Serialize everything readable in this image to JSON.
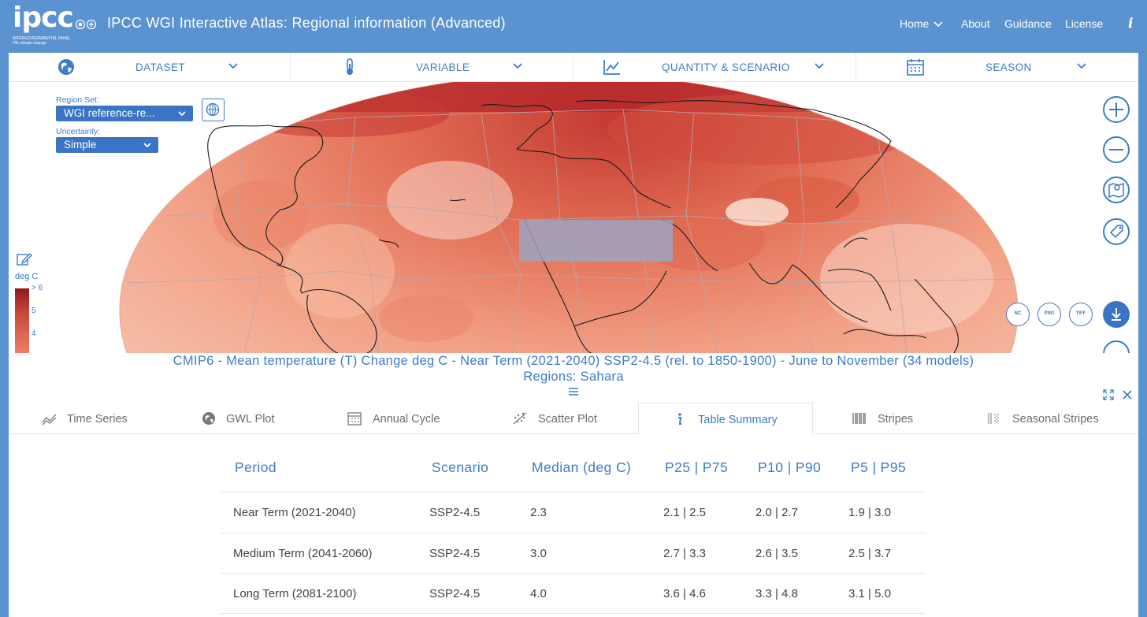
{
  "header": {
    "logo_text": "ipcc",
    "logo_subtext": "INTERGOVERNMENTAL PANEL ON climate change",
    "title": "IPCC WGI Interactive Atlas: Regional information (Advanced)",
    "nav": [
      {
        "label": "Home",
        "has_dropdown": true
      },
      {
        "label": "About"
      },
      {
        "label": "Guidance"
      },
      {
        "label": "License"
      }
    ],
    "info_icon": "info-icon"
  },
  "toolbar": {
    "dataset": {
      "label": "DATASET",
      "icon": "globe-icon"
    },
    "variable": {
      "label": "VARIABLE",
      "icon": "thermometer-icon"
    },
    "quantity": {
      "label": "QUANTITY & SCENARIO",
      "icon": "line-chart-icon"
    },
    "season": {
      "label": "SEASON",
      "icon": "calendar-icon"
    }
  },
  "map": {
    "region_set_label": "Region Set:",
    "region_set_value": "WGI reference-re...",
    "uncertainty_label": "Uncertainty:",
    "uncertainty_value": "Simple",
    "legend_unit": "deg C",
    "legend_ticks": [
      "> 6",
      "5",
      "4"
    ],
    "selected_region": "Sahara",
    "export_buttons": [
      "NC",
      "PNG",
      "TIFF"
    ],
    "colors": {
      "hot": "#b3262a",
      "warm": "#e8735a",
      "mild": "#f6c3ac",
      "selection": "#9aa6c4"
    }
  },
  "caption": {
    "line1": "CMIP6 - Mean temperature (T) Change deg C - Near Term (2021-2040) SSP2-4.5 (rel. to 1850-1900) - June to November (34 models)",
    "line2": "Regions: Sahara"
  },
  "tabs": [
    {
      "label": "Time Series",
      "icon": "time-series-icon"
    },
    {
      "label": "GWL Plot",
      "icon": "globe-icon"
    },
    {
      "label": "Annual Cycle",
      "icon": "calendar-grid-icon"
    },
    {
      "label": "Scatter Plot",
      "icon": "scatter-icon"
    },
    {
      "label": "Table Summary",
      "icon": "info-icon",
      "active": true
    },
    {
      "label": "Stripes",
      "icon": "stripes-icon"
    },
    {
      "label": "Seasonal Stripes",
      "icon": "seasonal-stripes-icon"
    }
  ],
  "table": {
    "headers": [
      "Period",
      "Scenario",
      "Median (deg C)",
      "P25 | P75",
      "P10 | P90",
      "P5 | P95"
    ],
    "rows": [
      [
        "Near Term (2021-2040)",
        "SSP2-4.5",
        "2.3",
        "2.1 | 2.5",
        "2.0 | 2.7",
        "1.9 | 3.0"
      ],
      [
        "Medium Term (2041-2060)",
        "SSP2-4.5",
        "3.0",
        "2.7 | 3.3",
        "2.6 | 3.5",
        "2.5 | 3.7"
      ],
      [
        "Long Term (2081-2100)",
        "SSP2-4.5",
        "4.0",
        "3.6 | 4.6",
        "3.3 | 4.8",
        "3.1 | 5.0"
      ]
    ]
  }
}
